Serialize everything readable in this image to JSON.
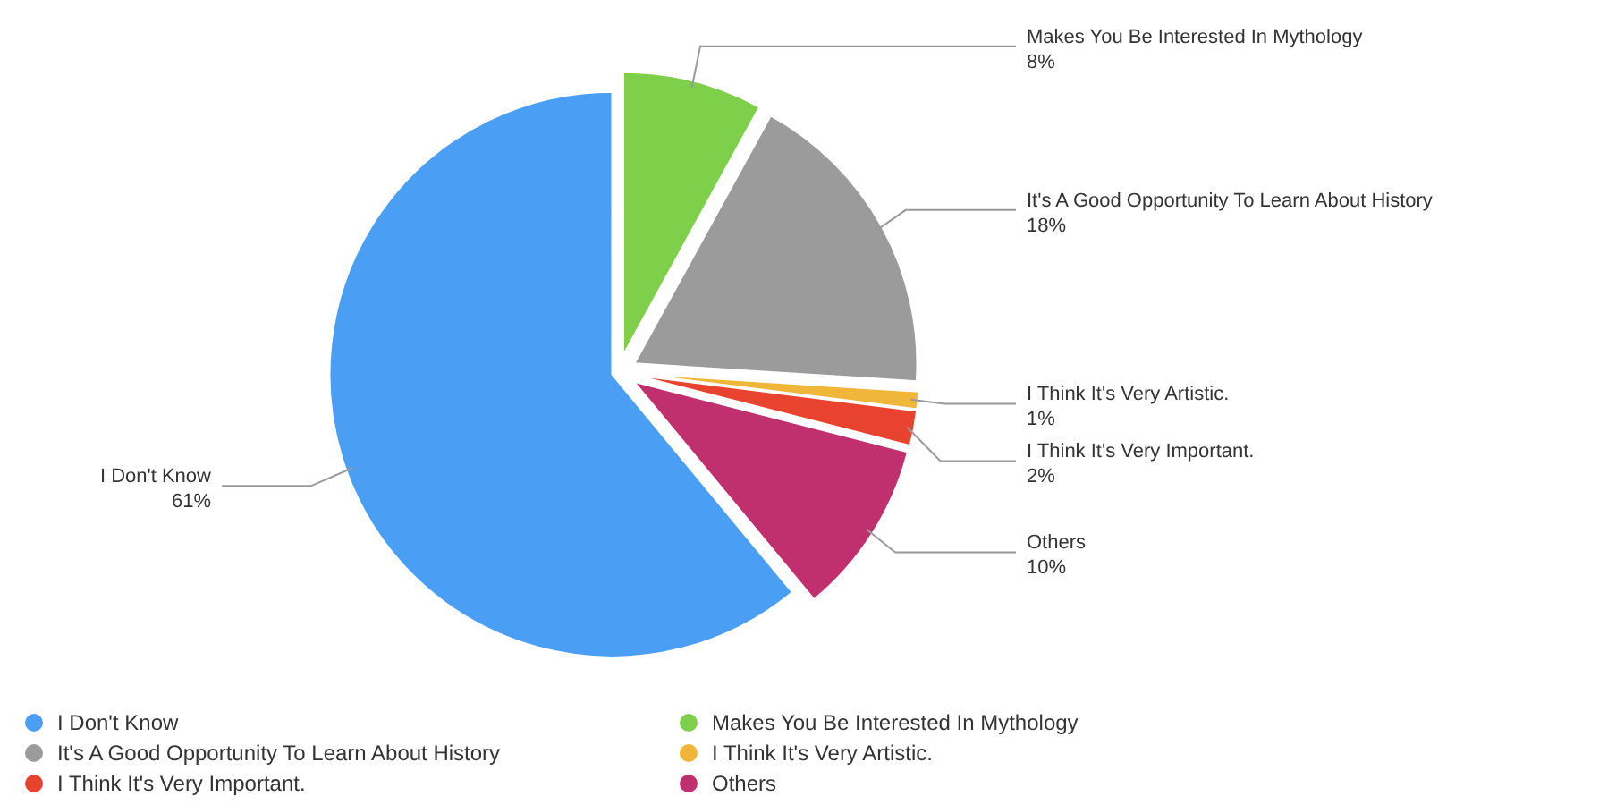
{
  "chart_data": {
    "type": "pie",
    "categories": [
      "I Don't Know",
      "Makes You Be Interested In Mythology",
      "It's A Good Opportunity To Learn About History",
      "I Think It's Very Artistic.",
      "I Think It's Very Important.",
      "Others"
    ],
    "values": [
      61,
      8,
      18,
      1,
      2,
      10
    ],
    "value_labels": [
      "61%",
      "8%",
      "18%",
      "1%",
      "2%",
      "10%"
    ],
    "colors": [
      "#4a9ff5",
      "#7ed04b",
      "#9b9b9b",
      "#f0b63a",
      "#e8432e",
      "#c0306f"
    ],
    "legend": "bottom"
  }
}
